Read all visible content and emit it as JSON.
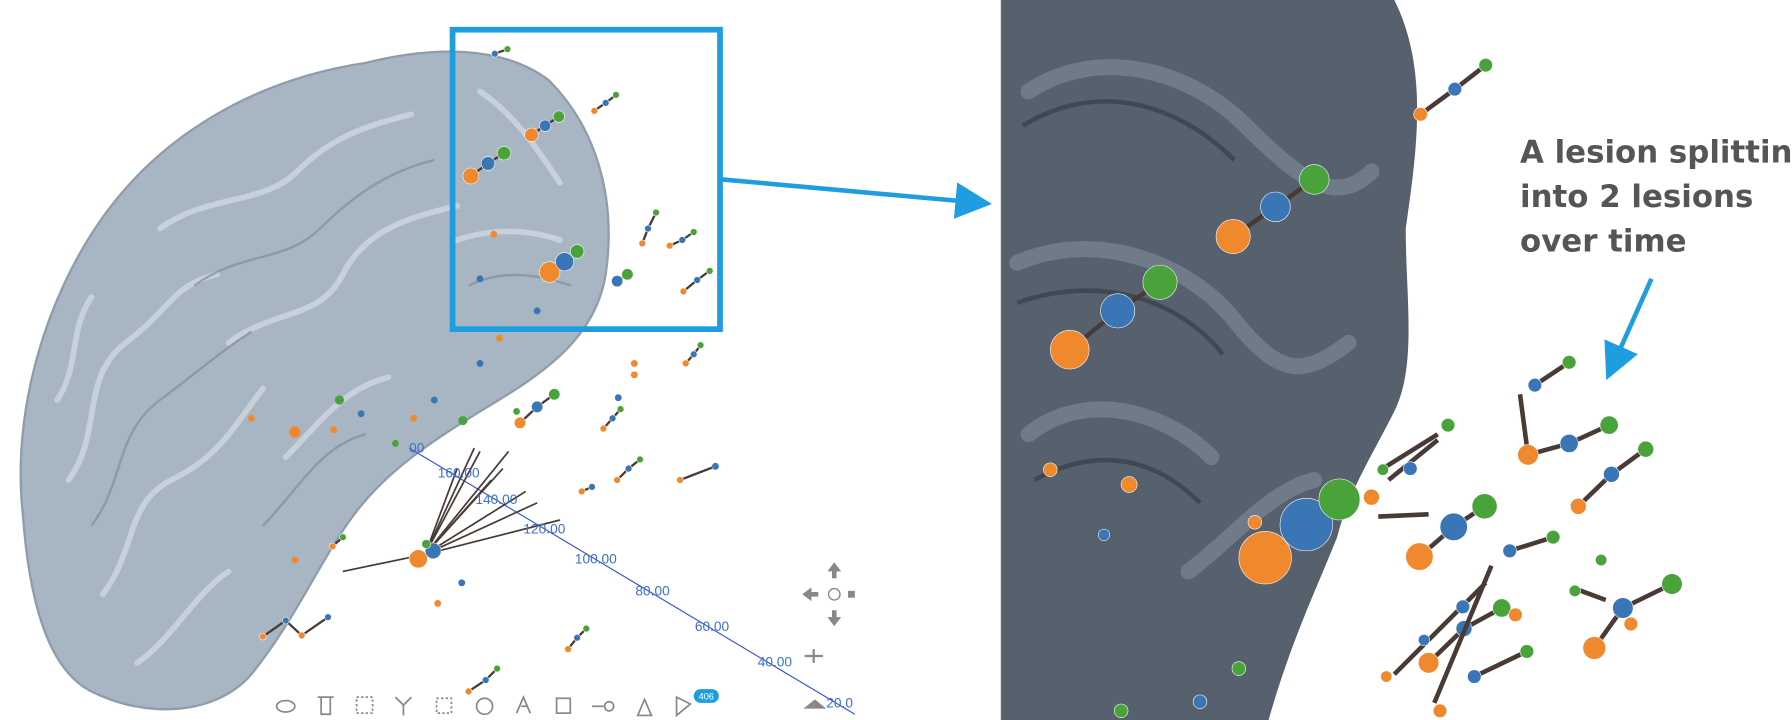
{
  "axis_labels": [
    "00",
    "160.00",
    "140.00",
    "120.00",
    "100.00",
    "80.00",
    "60.00",
    "40.00",
    "20.0"
  ],
  "toolbar": {
    "badge": "406"
  },
  "annotation": {
    "lines": [
      "A lesion splitting",
      "into 2 lesions",
      "over time"
    ]
  }
}
